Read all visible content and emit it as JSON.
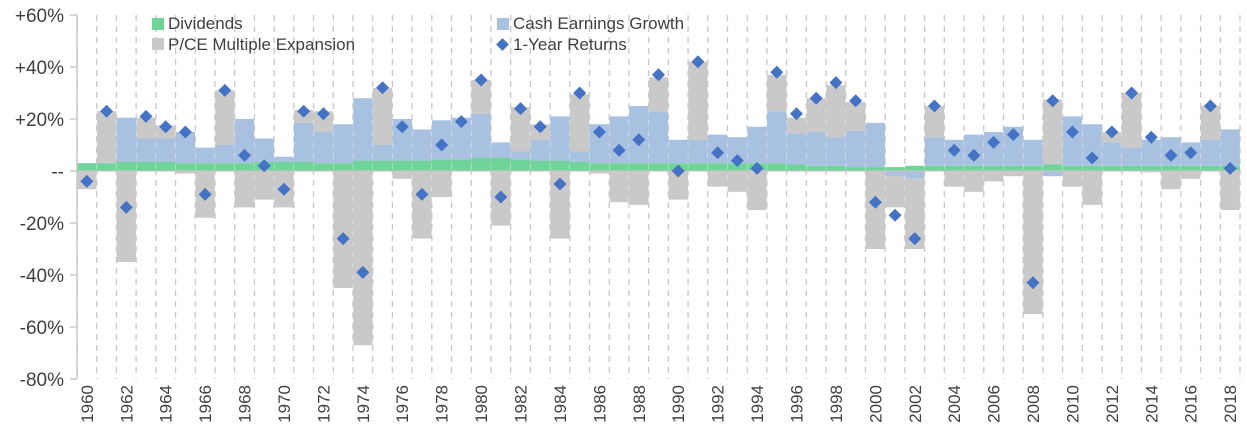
{
  "chart_data": {
    "type": "bar",
    "stacked": true,
    "title": "",
    "xlabel": "",
    "ylabel": "",
    "ylim": [
      -80,
      60
    ],
    "y_ticks": [
      60,
      40,
      20,
      0,
      -20,
      -40,
      -60,
      -80
    ],
    "y_tick_labels": [
      "+60%",
      "+40%",
      "+20%",
      "--",
      "-20%",
      "-40%",
      "-60%",
      "-80%"
    ],
    "x_tick_labels": [
      "1960",
      "1962",
      "1964",
      "1966",
      "1968",
      "1970",
      "1972",
      "1974",
      "1976",
      "1978",
      "1980",
      "1982",
      "1984",
      "1986",
      "1988",
      "1990",
      "1992",
      "1994",
      "1996",
      "1998",
      "2000",
      "2002",
      "2004",
      "2006",
      "2008",
      "2010",
      "2012",
      "2014",
      "2016",
      "2018"
    ],
    "grid": "vertical dashed",
    "legend_position": "top-left",
    "colors": {
      "dividends": "#6fd39a",
      "earnings": "#a9c1e1",
      "multiple": "#c9c9c9",
      "returns": "#4472c4",
      "grid": "#c8c8c8",
      "axis": "#c8c8c8"
    },
    "categories": [
      "1960",
      "1961",
      "1962",
      "1963",
      "1964",
      "1965",
      "1966",
      "1967",
      "1968",
      "1969",
      "1970",
      "1971",
      "1972",
      "1973",
      "1974",
      "1975",
      "1976",
      "1977",
      "1978",
      "1979",
      "1980",
      "1981",
      "1982",
      "1983",
      "1984",
      "1985",
      "1986",
      "1987",
      "1988",
      "1989",
      "1990",
      "1991",
      "1992",
      "1993",
      "1994",
      "1995",
      "1996",
      "1997",
      "1998",
      "1999",
      "2000",
      "2001",
      "2002",
      "2003",
      "2004",
      "2005",
      "2006",
      "2007",
      "2008",
      "2009",
      "2010",
      "2011",
      "2012",
      "2013",
      "2014",
      "2015",
      "2016",
      "2017",
      "2018"
    ],
    "series": [
      {
        "name": "Dividends",
        "kind": "bar",
        "values": [
          3,
          3,
          3.5,
          3.5,
          3.5,
          3,
          3,
          3,
          3,
          3.5,
          3.5,
          3.5,
          3,
          3,
          4,
          4,
          4,
          4,
          4.5,
          4.5,
          5,
          5,
          4.5,
          4,
          4,
          3.5,
          3,
          3,
          3,
          3,
          3,
          3,
          3,
          3,
          3,
          3,
          2.5,
          2,
          2,
          1.5,
          1.5,
          1.5,
          2,
          2,
          2,
          2,
          2,
          2,
          2,
          2.5,
          2,
          2,
          2,
          2,
          2,
          2,
          2,
          2,
          2
        ]
      },
      {
        "name": "Cash Earnings Growth",
        "kind": "bar",
        "values": [
          0,
          0,
          17,
          9,
          9,
          12,
          6,
          7,
          17,
          9,
          2,
          15,
          12,
          15,
          24,
          6,
          16,
          12,
          15,
          16,
          17,
          6,
          3,
          8,
          17,
          4,
          15,
          18,
          22,
          20,
          9,
          9,
          11,
          10,
          14,
          20,
          12,
          13,
          11,
          14,
          17,
          -2,
          -3,
          11,
          10,
          12,
          13,
          15,
          10,
          -2,
          19,
          16,
          9,
          7,
          10,
          11,
          9,
          10,
          14
        ]
      },
      {
        "name": "P/CE Multiple Expansion",
        "kind": "bar",
        "values": [
          -7,
          20,
          -35,
          8,
          5,
          -1,
          -18,
          21,
          -14,
          -11,
          -14,
          5,
          8,
          -45,
          -67,
          22,
          -3,
          -26,
          -10,
          0,
          13,
          -21,
          17,
          6,
          -26,
          22,
          -1,
          -12,
          -13,
          13,
          -11,
          30,
          -6,
          -8,
          -15,
          14,
          6,
          13,
          20,
          11,
          -30,
          -12,
          -27,
          12,
          -6,
          -8,
          -4,
          -2,
          -55,
          25,
          -6,
          -13,
          4,
          21,
          -0.5,
          -7,
          -3,
          13,
          -15
        ]
      },
      {
        "name": "1-Year Returns",
        "kind": "scatter",
        "values": [
          -4,
          23,
          -14,
          21,
          17,
          15,
          -9,
          31,
          6,
          2,
          -7,
          23,
          22,
          -26,
          -39,
          32,
          17,
          -9,
          10,
          19,
          35,
          -10,
          24,
          17,
          -5,
          30,
          15,
          8,
          12,
          37,
          0,
          42,
          7,
          4,
          1,
          38,
          22,
          28,
          34,
          27,
          -12,
          -17,
          -26,
          25,
          8,
          6,
          11,
          14,
          -43,
          27,
          15,
          5,
          15,
          30,
          13,
          6,
          7,
          25,
          1
        ]
      }
    ]
  }
}
